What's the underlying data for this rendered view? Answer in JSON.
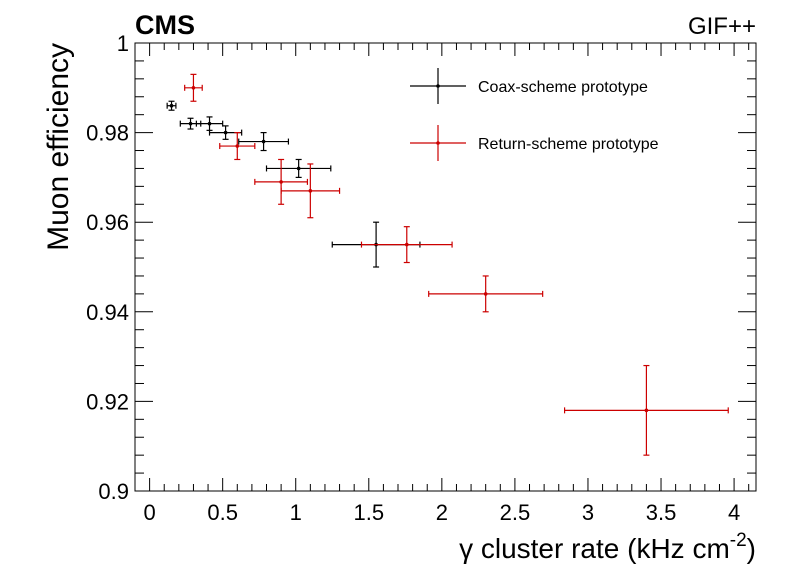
{
  "header": {
    "experiment": "CMS",
    "facility": "GIF++"
  },
  "chart_data": {
    "type": "scatter",
    "xlabel_prefix": "γ cluster rate (kHz cm",
    "xlabel_exp": "-2",
    "xlabel_suffix": ")",
    "ylabel": "Muon efficiency",
    "xlim": [
      -0.1,
      4.15
    ],
    "ylim": [
      0.9,
      1.0
    ],
    "x_ticks": [
      0,
      0.5,
      1,
      1.5,
      2,
      2.5,
      3,
      3.5,
      4
    ],
    "x_tick_labels": [
      "0",
      "0.5",
      "1",
      "1.5",
      "2",
      "2.5",
      "3",
      "3.5",
      "4"
    ],
    "y_ticks": [
      0.9,
      0.92,
      0.94,
      0.96,
      0.98,
      1.0
    ],
    "y_tick_labels": [
      "0.9",
      "0.92",
      "0.94",
      "0.96",
      "0.98",
      "1"
    ],
    "grid": false,
    "legend_position": "top-right",
    "series": [
      {
        "name": "Coax-scheme prototype",
        "color": "#000000",
        "points": [
          {
            "x": 0.15,
            "y": 0.986,
            "xerr": 0.03,
            "yerr": 0.001
          },
          {
            "x": 0.28,
            "y": 0.982,
            "xerr": 0.07,
            "yerr": 0.0012
          },
          {
            "x": 0.41,
            "y": 0.982,
            "xerr": 0.09,
            "yerr": 0.0015
          },
          {
            "x": 0.52,
            "y": 0.98,
            "xerr": 0.11,
            "yerr": 0.0015
          },
          {
            "x": 0.78,
            "y": 0.978,
            "xerr": 0.17,
            "yerr": 0.002
          },
          {
            "x": 1.02,
            "y": 0.972,
            "xerr": 0.22,
            "yerr": 0.002
          },
          {
            "x": 1.55,
            "y": 0.955,
            "xerr": 0.3,
            "yerr": 0.005
          }
        ]
      },
      {
        "name": "Return-scheme prototype",
        "color": "#cc0000",
        "points": [
          {
            "x": 0.3,
            "y": 0.99,
            "xerr": 0.06,
            "yerr": 0.003
          },
          {
            "x": 0.6,
            "y": 0.977,
            "xerr": 0.12,
            "yerr": 0.003
          },
          {
            "x": 0.9,
            "y": 0.969,
            "xerr": 0.18,
            "yerr": 0.005
          },
          {
            "x": 1.1,
            "y": 0.967,
            "xerr": 0.2,
            "yerr": 0.006
          },
          {
            "x": 1.76,
            "y": 0.955,
            "xerr": 0.31,
            "yerr": 0.004
          },
          {
            "x": 2.3,
            "y": 0.944,
            "xerr": 0.39,
            "yerr": 0.004
          },
          {
            "x": 3.4,
            "y": 0.918,
            "xerr": 0.56,
            "yerr": 0.01
          }
        ]
      }
    ]
  }
}
